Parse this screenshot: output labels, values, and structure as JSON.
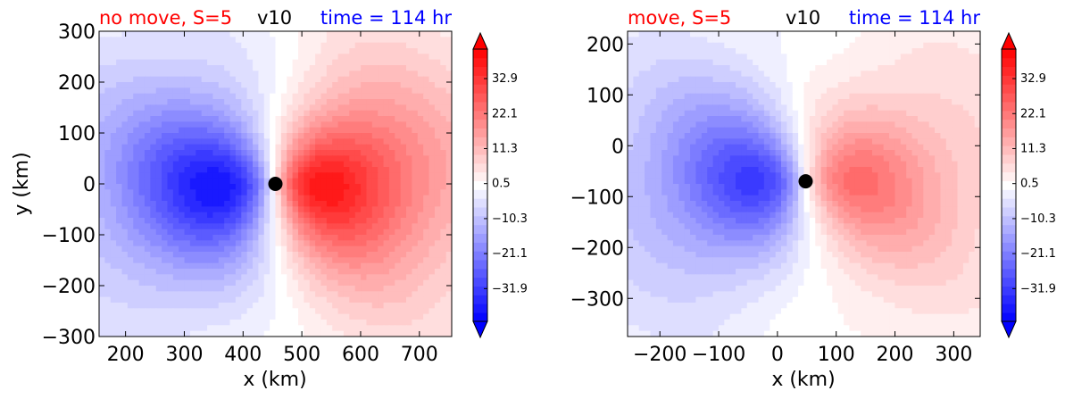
{
  "colors": {
    "title_left": "#ff0000",
    "title_mid": "#000000",
    "title_right": "#0000ff",
    "neg_extreme": "#0000ff",
    "pos_extreme": "#ff0000",
    "center_marker": "#000000"
  },
  "chart_data": [
    {
      "type": "heatmap",
      "title_left": "no move, S=5",
      "title_mid": "v10",
      "title_right": "time = 114 hr",
      "xlabel": "x (km)",
      "ylabel": "y (km)",
      "xlim": [
        155,
        755
      ],
      "ylim": [
        -300,
        300
      ],
      "xticks": [
        200,
        300,
        400,
        500,
        600,
        700
      ],
      "yticks": [
        -300,
        -200,
        -100,
        0,
        100,
        200,
        300
      ],
      "xtick_labels": [
        "200",
        "300",
        "400",
        "500",
        "600",
        "700"
      ],
      "ytick_labels": [
        "−300",
        "−200",
        "−100",
        "0",
        "100",
        "200",
        "300"
      ],
      "center": [
        455,
        0
      ],
      "vortex_max": 38,
      "vortex_min": -38,
      "colorbar": {
        "range": [
          -42,
          42
        ],
        "ticks": [
          32.9,
          22.1,
          11.3,
          0.5,
          -10.3,
          -21.1,
          -31.9
        ],
        "tick_labels": [
          "32.9",
          "22.1",
          "11.3",
          "0.5",
          "−10.3",
          "−21.1",
          "−31.9"
        ],
        "extend": "both",
        "cmap": "bwr"
      }
    },
    {
      "type": "heatmap",
      "title_left": "move, S=5",
      "title_mid": "v10",
      "title_right": "time = 114 hr",
      "xlabel": "x (km)",
      "ylabel": "",
      "xlim": [
        -255,
        345
      ],
      "ylim": [
        -375,
        225
      ],
      "xticks": [
        -200,
        -100,
        0,
        100,
        200,
        300
      ],
      "yticks": [
        -300,
        -200,
        -100,
        0,
        100,
        200
      ],
      "xtick_labels": [
        "−200",
        "−100",
        "0",
        "100",
        "200",
        "300"
      ],
      "ytick_labels": [
        "−300",
        "−200",
        "−100",
        "0",
        "100",
        "200"
      ],
      "center": [
        48,
        -70
      ],
      "vortex_max": 22,
      "vortex_min": -30,
      "colorbar": {
        "range": [
          -42,
          42
        ],
        "ticks": [
          32.9,
          22.1,
          11.3,
          0.5,
          -10.3,
          -21.1,
          -31.9
        ],
        "tick_labels": [
          "32.9",
          "22.1",
          "11.3",
          "0.5",
          "−10.3",
          "−21.1",
          "−31.9"
        ],
        "extend": "both",
        "cmap": "bwr"
      }
    }
  ]
}
